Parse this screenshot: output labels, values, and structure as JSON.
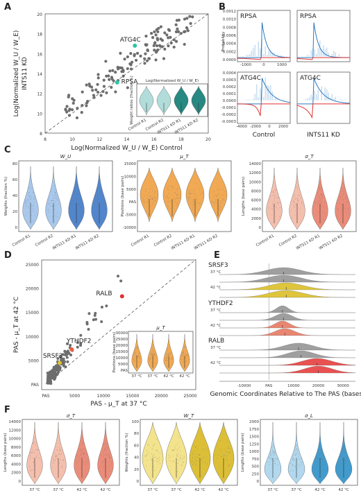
{
  "panels": {
    "A": {
      "label": "A",
      "xlabel": "Log(Normalized W_U / W_E) Control",
      "ylabel_line1": "Log(Normalized W_U / W_E)",
      "ylabel_line2": "INTS11 KD",
      "x_ticks": [
        "8",
        "10",
        "12",
        "14",
        "16",
        "18",
        "20"
      ],
      "y_ticks": [
        "8",
        "10",
        "12",
        "14",
        "16",
        "18",
        "20"
      ],
      "annotations": [
        "ATG4C",
        "RPSA"
      ],
      "inset_title": "Log(Normalized W_U / W_E)",
      "inset_ylabel": "Weight ratios (fraction %)",
      "inset_categories": [
        "Control R1",
        "Control R2",
        "INTS11 KD R1",
        "INTS11 KD R2"
      ]
    },
    "B": {
      "label": "B",
      "ylabel": "Probability",
      "genes": [
        "RPSA",
        "RPSA",
        "ATG4C",
        "ATG4C"
      ],
      "top_yticks": [
        "0.0012",
        "0.0010",
        "0.0008",
        "0.0006",
        "0.0004",
        "0.0002",
        "0.0000"
      ],
      "bottom_yticks": [
        "0.0004",
        "0.0003",
        "0.0002",
        "0.0001",
        "0.0000",
        "-0.0001",
        "-0.0002",
        "-0.0003"
      ],
      "top_xticks": [
        "-1000",
        "0",
        "1000"
      ],
      "bottom_xticks": [
        "-4000",
        "-2000",
        "0",
        "2000"
      ],
      "xlabels": [
        "Control",
        "INTS11 KD"
      ]
    },
    "C": {
      "label": "C",
      "titles": [
        "W_U",
        "μ_T",
        "σ_T"
      ],
      "ylabels": [
        "Weights (fraction %)",
        "Positions (base pairs)",
        "Lengths (base pairs)"
      ],
      "categories": [
        "Control R1",
        "Control R2",
        "INTS11 KD R1",
        "INTS11 KD R2"
      ],
      "c1_yticks": [
        "80",
        "60",
        "40",
        "20",
        "0"
      ],
      "c2_yticks": [
        "15000",
        "10000",
        "5000",
        "PAS",
        "-5000",
        "-10000"
      ],
      "c3_yticks": [
        "14000",
        "12000",
        "10000",
        "8000",
        "6000",
        "4000",
        "2000",
        "0"
      ],
      "colors": [
        "#9ec2ea",
        "#9ec2ea",
        "#3f79c6",
        "#3f79c6"
      ]
    },
    "D": {
      "label": "D",
      "xlabel": "PAS - μ_T at 37 °C",
      "ylabel": "PAS - μ_T at 42 °C",
      "x_ticks": [
        "PAS",
        "5000",
        "10000",
        "15000",
        "20000",
        "25000"
      ],
      "y_ticks": [
        "25000",
        "20000",
        "15000",
        "10000",
        "5000",
        "PAS"
      ],
      "annotations": [
        "RALB",
        "YTHDF2",
        "SRSF3"
      ],
      "inset_title": "μ_T",
      "inset_ylabel": "Positions (base pairs)",
      "inset_yticks": [
        "30000",
        "25000",
        "20000",
        "15000",
        "10000",
        "5000",
        "PAS"
      ],
      "inset_categories": [
        "37 °C",
        "37 °C",
        "42 °C",
        "42 °C"
      ]
    },
    "E": {
      "label": "E",
      "genes": [
        "SRSF3",
        "YTHDF2",
        "RALB"
      ],
      "temps": [
        "37 °C",
        "42 °C"
      ],
      "x_ticks": [
        "-10000",
        "PAS",
        "10000",
        "20000",
        "30000"
      ],
      "xlabel": "Genomic Coordinates Relative to The PAS (bases)"
    },
    "F": {
      "label": "F",
      "titles": [
        "σ_T",
        "W_T",
        "σ_L"
      ],
      "ylabels": [
        "Lengths (base pairs)",
        "Weights (fraction %)",
        "Lengths (base pairs)"
      ],
      "categories": [
        "37 °C",
        "37 °C",
        "42 °C",
        "42 °C"
      ],
      "f1_yticks": [
        "14000",
        "12000",
        "10000",
        "8000",
        "6000",
        "4000",
        "2000",
        "0"
      ],
      "f2_yticks": [
        "100",
        "80",
        "60",
        "40",
        "20",
        "0"
      ],
      "f3_yticks": [
        "2000",
        "1750",
        "1500",
        "1250",
        "1000",
        "750",
        "500",
        "250",
        "0"
      ]
    }
  },
  "colors": {
    "grey_dot": "#6d6d6d",
    "teal": "#2ec4a6",
    "teal_dark": "#0f7c73",
    "teal_light": "#a8d8d6",
    "blue_light": "#9ec2ea",
    "blue_dark": "#3f79c6",
    "orange": "#f0a040",
    "salmon_light": "#f4b8a4",
    "salmon": "#e8806a",
    "yellow_light": "#f2e080",
    "yellow_dark": "#d8b820",
    "sky_light": "#a8d4ec",
    "sky_dark": "#2d90c8",
    "red": "#e03030",
    "grey_ridge": "#9a9a9a",
    "gold_ridge": "#dcc230"
  }
}
